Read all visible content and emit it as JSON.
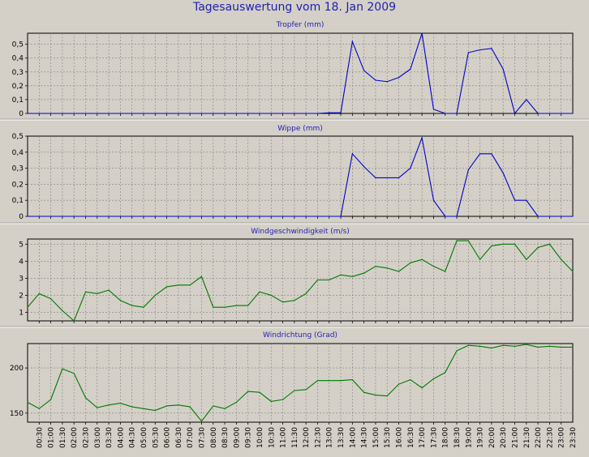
{
  "title": "Tagesauswertung vom 18. Jan 2009",
  "time_labels": [
    "00:30",
    "01:00",
    "01:30",
    "02:00",
    "02:30",
    "03:00",
    "03:30",
    "04:00",
    "04:30",
    "05:00",
    "05:30",
    "06:00",
    "06:30",
    "07:00",
    "07:30",
    "08:00",
    "08:30",
    "09:00",
    "09:30",
    "10:00",
    "10:30",
    "11:00",
    "11:30",
    "12:00",
    "12:30",
    "13:00",
    "13:30",
    "14:00",
    "14:30",
    "15:00",
    "15:30",
    "16:00",
    "16:30",
    "17:00",
    "17:30",
    "18:00",
    "18:30",
    "19:00",
    "19:30",
    "20:00",
    "20:30",
    "21:00",
    "21:30",
    "22:00",
    "22:30",
    "23:00",
    "23:30"
  ],
  "colors": {
    "blue_series": "#0000c8",
    "green_series": "#007800",
    "panel_title": "#1f1fb0",
    "grid": "#808080"
  },
  "chart_data": [
    {
      "type": "line",
      "title": "Tropfer (mm)",
      "ylim": [
        0,
        0.58
      ],
      "yticks": [
        0,
        0.1,
        0.2,
        0.3,
        0.4,
        0.5
      ],
      "ytick_labels": [
        "0",
        "0,1",
        "0,2",
        "0,3",
        "0,4",
        "0,5"
      ],
      "color": "#0000c8",
      "values": [
        0,
        0,
        0,
        0,
        0,
        0,
        0,
        0,
        0,
        0,
        0,
        0,
        0,
        0,
        0,
        0,
        0,
        0,
        0,
        0,
        0,
        0,
        0,
        0,
        0,
        0,
        0.005,
        0.005,
        0.52,
        0.31,
        0.24,
        0.23,
        0.26,
        0.32,
        0.58,
        0.03,
        0,
        0,
        0.44,
        0.46,
        0.47,
        0.32,
        0,
        0.1,
        0,
        0,
        0,
        0
      ]
    },
    {
      "type": "line",
      "title": "Wippe (mm)",
      "ylim": [
        0,
        0.5
      ],
      "yticks": [
        0,
        0.1,
        0.2,
        0.3,
        0.4,
        0.5
      ],
      "ytick_labels": [
        "0",
        "0,1",
        "0,2",
        "0,3",
        "0,4",
        "0,5"
      ],
      "color": "#0000c8",
      "values": [
        0,
        0,
        0,
        0,
        0,
        0,
        0,
        0,
        0,
        0,
        0,
        0,
        0,
        0,
        0,
        0,
        0,
        0,
        0,
        0,
        0,
        0,
        0,
        0,
        0,
        0,
        0,
        0,
        0.39,
        0.31,
        0.24,
        0.24,
        0.24,
        0.3,
        0.49,
        0.1,
        0,
        0,
        0.29,
        0.39,
        0.39,
        0.27,
        0.1,
        0.1,
        0,
        0,
        0,
        0
      ]
    },
    {
      "type": "line",
      "title": "Windgeschwindigkeit (m/s)",
      "ylim": [
        0.5,
        5.3
      ],
      "yticks": [
        1,
        2,
        3,
        4,
        5
      ],
      "ytick_labels": [
        "1",
        "2",
        "3",
        "4",
        "5"
      ],
      "color": "#007800",
      "values": [
        1.3,
        2.1,
        1.8,
        1.1,
        0.5,
        2.2,
        2.1,
        2.3,
        1.7,
        1.4,
        1.3,
        2.0,
        2.5,
        2.6,
        2.6,
        3.1,
        1.3,
        1.3,
        1.4,
        1.4,
        2.2,
        2.0,
        1.6,
        1.7,
        2.1,
        2.9,
        2.9,
        3.2,
        3.1,
        3.3,
        3.7,
        3.6,
        3.4,
        3.9,
        4.1,
        3.7,
        3.4,
        5.2,
        5.2,
        4.1,
        4.9,
        5.0,
        5.0,
        4.1,
        4.8,
        5.0,
        4.1,
        3.4
      ]
    },
    {
      "type": "line",
      "title": "Windrichtung (Grad)",
      "ylim": [
        140,
        227
      ],
      "yticks": [
        150,
        200
      ],
      "ytick_labels": [
        "150",
        "200"
      ],
      "color": "#007800",
      "values": [
        162,
        155,
        165,
        199,
        194,
        167,
        156,
        159,
        161,
        157,
        155,
        153,
        158,
        159,
        157,
        141,
        158,
        155,
        162,
        174,
        173,
        163,
        165,
        175,
        176,
        186,
        186,
        186,
        187,
        173,
        170,
        169,
        182,
        187,
        178,
        188,
        195,
        219,
        225,
        224,
        222,
        225,
        224,
        226,
        223,
        224,
        223,
        223
      ]
    }
  ]
}
